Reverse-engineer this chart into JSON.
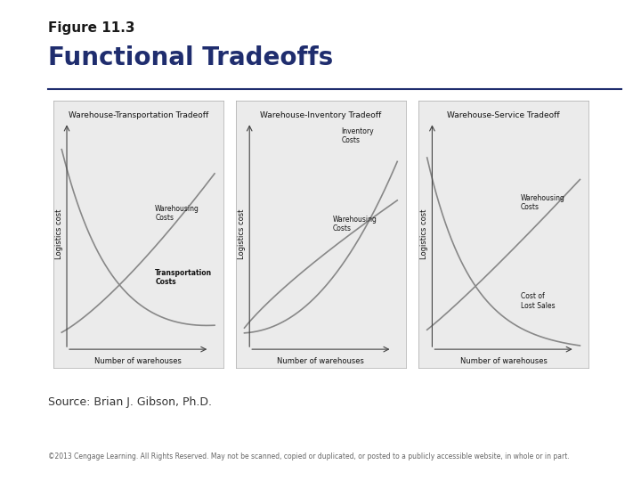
{
  "title_label": "Figure 11.3",
  "title_main": "Functional Tradeoffs",
  "title_color": "#1f2d6e",
  "title_label_color": "#1a1a1a",
  "source_text": "Source: Brian J. Gibson, Ph.D.",
  "copyright_text": "©2013 Cengage Learning. All Rights Reserved. May not be scanned, copied or duplicated, or posted to a publicly accessible website, in whole or in part.",
  "divider_color": "#1f2d6e",
  "bg_color": "#ffffff",
  "panel_bg": "#ebebeb",
  "panel_border": "#bbbbbb",
  "panel_titles": [
    "Warehouse-Transportation Tradeoff",
    "Warehouse-Inventory Tradeoff",
    "Warehouse-Service Tradeoff"
  ],
  "xlabel": "Number of warehouses",
  "ylabel": "Logistics cost",
  "curve_color": "#888888",
  "title_label_fontsize": 11,
  "title_main_fontsize": 20,
  "panel_title_fontsize": 6.5,
  "axis_label_fontsize": 6.0,
  "annotation_fontsize": 5.5,
  "source_fontsize": 9,
  "copyright_fontsize": 5.5
}
